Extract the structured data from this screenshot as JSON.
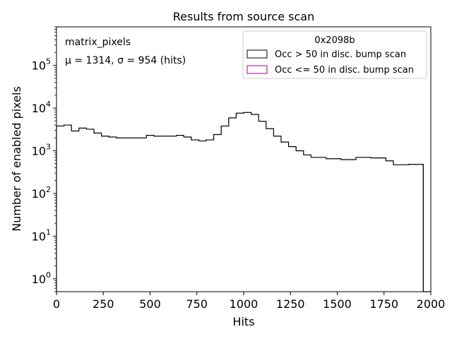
{
  "chart_data": {
    "type": "histogram",
    "title": "Results from source scan",
    "xlabel": "Hits",
    "ylabel": "Number of enabled pixels",
    "xlim": [
      0,
      2000
    ],
    "ylim": [
      0.5,
      800000
    ],
    "yscale": "log",
    "grid": false,
    "legend_placement": "top-right",
    "legend_title": "0x2098b",
    "annotations": [
      "matrix_pixels",
      "μ = 1314, σ = 954 (hits)"
    ],
    "x_ticks": [
      "0",
      "250",
      "500",
      "750",
      "1000",
      "1250",
      "1500",
      "1750",
      "2000"
    ],
    "y_ticks": [
      {
        "value": 1,
        "base": "10",
        "exp": "0"
      },
      {
        "value": 10,
        "base": "10",
        "exp": "1"
      },
      {
        "value": 100,
        "base": "10",
        "exp": "2"
      },
      {
        "value": 1000,
        "base": "10",
        "exp": "3"
      },
      {
        "value": 10000,
        "base": "10",
        "exp": "4"
      },
      {
        "value": 100000,
        "base": "10",
        "exp": "5"
      }
    ],
    "bin_edges": [
      0,
      40,
      80,
      120,
      160,
      200,
      240,
      280,
      320,
      360,
      400,
      440,
      480,
      520,
      560,
      600,
      640,
      680,
      720,
      760,
      800,
      840,
      880,
      920,
      960,
      1000,
      1040,
      1080,
      1120,
      1160,
      1200,
      1240,
      1280,
      1320,
      1360,
      1400,
      1440,
      1480,
      1520,
      1560,
      1600,
      1640,
      1680,
      1720,
      1760,
      1800,
      1840,
      1880,
      1920,
      1960,
      2000
    ],
    "series": [
      {
        "name": "Occ > 50 in disc. bump scan",
        "color": "#000000",
        "values": [
          3800,
          4000,
          2900,
          3400,
          3200,
          2600,
          2200,
          2100,
          2000,
          2000,
          2000,
          2000,
          2300,
          2200,
          2200,
          2200,
          2300,
          2100,
          1800,
          1700,
          1800,
          2400,
          3800,
          5900,
          7600,
          7900,
          7100,
          4900,
          3300,
          2200,
          1600,
          1250,
          1000,
          800,
          700,
          700,
          650,
          650,
          620,
          620,
          700,
          700,
          680,
          680,
          580,
          470,
          470,
          480,
          480,
          0
        ]
      },
      {
        "name": "Occ <= 50 in disc. bump scan",
        "color": "#a000a0",
        "values": []
      }
    ]
  }
}
